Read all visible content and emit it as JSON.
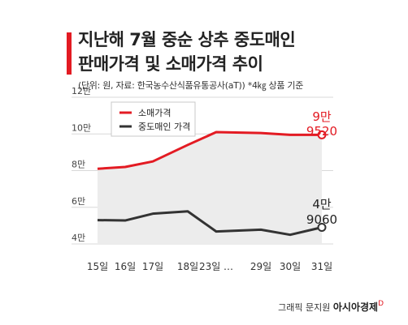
{
  "header": {
    "title_line1": "지난해 7월 중순 상추 중도매인",
    "title_line2": "판매가격 및 소매가격 추이",
    "subtitle": "(단위: 원, 자료: 한국농수산식품유통공사(aT))  *4㎏ 상품 기준"
  },
  "footer": {
    "credit": "그래픽 문지원",
    "brand": "아시아경제",
    "brand_mark": "D"
  },
  "colors": {
    "retail": "#e31b23",
    "wholesale": "#333333",
    "area": "#ececec",
    "accent": "#e31b23"
  },
  "chart_data": {
    "type": "line",
    "categories": [
      "15일",
      "16일",
      "17일",
      "18일",
      "23일 …",
      "29일",
      "30일",
      "31일"
    ],
    "yticks": [
      "12만",
      "10만",
      "8만",
      "6만",
      "4만"
    ],
    "ylim": [
      40000,
      120000
    ],
    "grid": true,
    "legend_placement": "top-left",
    "series": [
      {
        "name": "소매가격",
        "color": "#e31b23",
        "values": [
          81000,
          82000,
          85000,
          94000,
          101000,
          100500,
          99500,
          99500
        ],
        "end_label_top": "9만",
        "end_label_bottom": "9520"
      },
      {
        "name": "중도매인 가격",
        "color": "#333333",
        "values": [
          53000,
          52800,
          56500,
          57800,
          46800,
          47800,
          45000,
          49060
        ],
        "end_label_top": "4만",
        "end_label_bottom": "9060"
      }
    ]
  }
}
